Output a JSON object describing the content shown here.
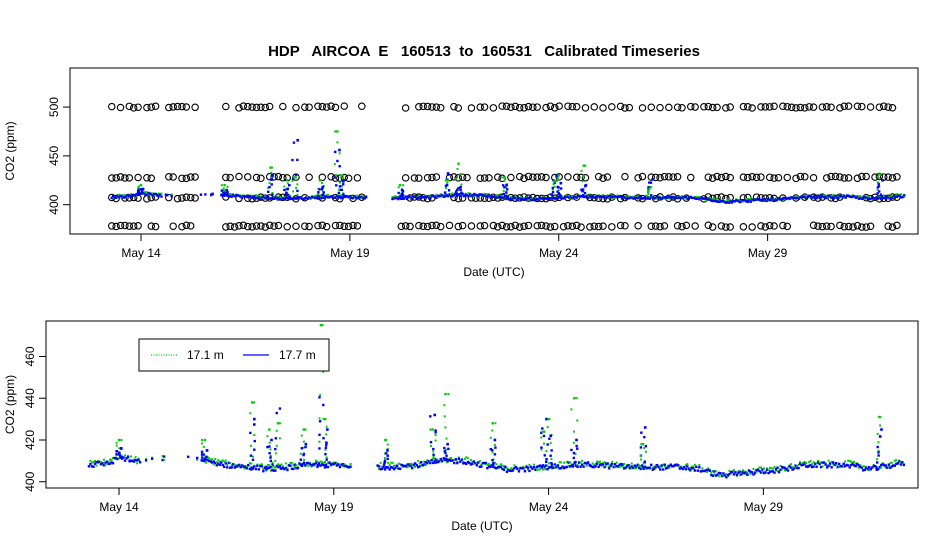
{
  "chart_data": [
    {
      "type": "scatter",
      "title": "HDP   AIRCOA  E   160513  to  160531   Calibrated Timeseries",
      "xlabel": "Date (UTC)",
      "ylabel": "CO2 (ppm)",
      "x_unit": "day of May 2016",
      "xlim": [
        12.3,
        32.6
      ],
      "ylim": [
        370,
        540
      ],
      "x_ticks": [
        {
          "value": 14,
          "label": "May 14"
        },
        {
          "value": 19,
          "label": "May 19"
        },
        {
          "value": 24,
          "label": "May 24"
        },
        {
          "value": 29,
          "label": "May 29"
        }
      ],
      "y_ticks": [
        {
          "value": 400,
          "label": "400"
        },
        {
          "value": 450,
          "label": "450"
        },
        {
          "value": 500,
          "label": "500"
        }
      ],
      "calibration_levels": [
        378,
        407,
        428,
        500
      ],
      "calibration_color": "#000000",
      "coverage_gaps": [
        [
          14.4,
          14.6
        ],
        [
          15.3,
          16.0
        ],
        [
          19.4,
          20.2
        ]
      ],
      "series": [
        {
          "color": "#00cc00",
          "shape": "point"
        },
        {
          "color": "#0000ff",
          "shape": "point"
        }
      ],
      "ambient_base": [
        [
          13.3,
          408
        ],
        [
          13.8,
          409
        ],
        [
          14.0,
          412
        ],
        [
          14.3,
          410
        ],
        [
          14.6,
          409
        ],
        [
          15.0,
          411
        ],
        [
          15.5,
          411
        ],
        [
          16.0,
          410
        ],
        [
          16.5,
          408
        ],
        [
          17.0,
          407
        ],
        [
          17.5,
          406
        ],
        [
          18.0,
          407
        ],
        [
          18.5,
          408
        ],
        [
          19.0,
          408
        ],
        [
          19.4,
          407
        ],
        [
          20.2,
          407
        ],
        [
          21.0,
          408
        ],
        [
          21.5,
          410
        ],
        [
          22.0,
          410
        ],
        [
          22.5,
          408
        ],
        [
          23.0,
          406
        ],
        [
          23.5,
          406
        ],
        [
          24.0,
          407
        ],
        [
          24.5,
          408
        ],
        [
          25.0,
          408
        ],
        [
          26.0,
          407
        ],
        [
          27.0,
          407
        ],
        [
          27.5,
          406
        ],
        [
          28.0,
          403
        ],
        [
          28.5,
          404
        ],
        [
          29.0,
          405
        ],
        [
          29.5,
          406
        ],
        [
          30.0,
          408
        ],
        [
          30.5,
          408
        ],
        [
          31.0,
          408
        ],
        [
          31.5,
          406
        ],
        [
          32.0,
          408
        ],
        [
          32.3,
          409
        ]
      ],
      "spikes": [
        {
          "x": 14.0,
          "green": 420,
          "blue": 416
        },
        {
          "x": 16.0,
          "green": 420,
          "blue": 415
        },
        {
          "x": 17.1,
          "green": 438,
          "blue": 430
        },
        {
          "x": 17.5,
          "green": 425,
          "blue": 420
        },
        {
          "x": 17.7,
          "green": 428,
          "blue": 466
        },
        {
          "x": 18.3,
          "green": 425,
          "blue": 418
        },
        {
          "x": 18.7,
          "green": 475,
          "blue": 456
        },
        {
          "x": 18.8,
          "green": 430,
          "blue": 425
        },
        {
          "x": 20.2,
          "green": 420,
          "blue": 415
        },
        {
          "x": 21.3,
          "green": 425,
          "blue": 432
        },
        {
          "x": 21.6,
          "green": 442,
          "blue": 418
        },
        {
          "x": 22.7,
          "green": 428,
          "blue": 420
        },
        {
          "x": 23.9,
          "green": 424,
          "blue": 430
        },
        {
          "x": 24.0,
          "green": 430,
          "blue": 422
        },
        {
          "x": 24.6,
          "green": 440,
          "blue": 420
        },
        {
          "x": 26.2,
          "green": 418,
          "blue": 426
        },
        {
          "x": 31.7,
          "green": 431,
          "blue": 425
        }
      ]
    },
    {
      "type": "scatter",
      "title": "",
      "xlabel": "Date (UTC)",
      "ylabel": "CO2 (ppm)",
      "x_unit": "day of May 2016",
      "xlim": [
        12.3,
        32.6
      ],
      "ylim": [
        397,
        477
      ],
      "x_ticks": [
        {
          "value": 14,
          "label": "May 14"
        },
        {
          "value": 19,
          "label": "May 19"
        },
        {
          "value": 24,
          "label": "May 24"
        },
        {
          "value": 29,
          "label": "May 29"
        }
      ],
      "y_ticks": [
        {
          "value": 400,
          "label": "400"
        },
        {
          "value": 420,
          "label": "420"
        },
        {
          "value": 440,
          "label": "440"
        },
        {
          "value": 460,
          "label": "460"
        }
      ],
      "legend": {
        "position": "top-left",
        "entries": [
          {
            "label": "17.1 m",
            "color": "#00cc00",
            "line": "dotted"
          },
          {
            "label": "17.7 m",
            "color": "#0000ff",
            "line": "solid"
          }
        ]
      },
      "series": [
        {
          "name": "17.1 m",
          "color": "#00cc00",
          "shape": "point"
        },
        {
          "name": "17.7 m",
          "color": "#0000ff",
          "shape": "point"
        }
      ]
    }
  ]
}
